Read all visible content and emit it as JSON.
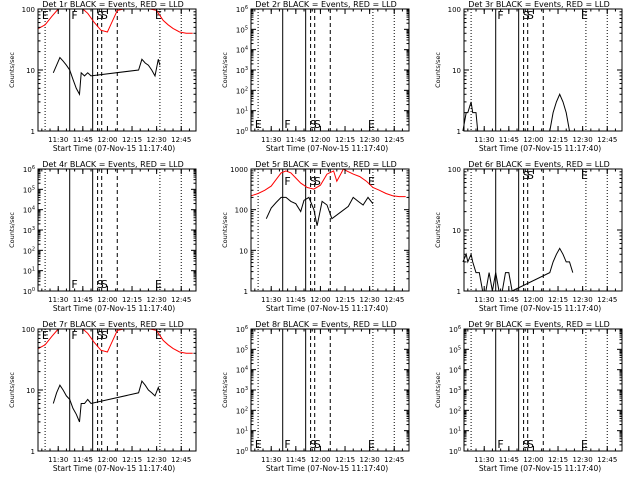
{
  "figure": {
    "xlabel": "Start Time (07-Nov-15 11:17:40)",
    "ylabel": "Counts/sec"
  },
  "colors": {
    "events": "#000000",
    "lld": "#ff0000",
    "background": "#ffffff"
  },
  "chart_data": [
    {
      "type": "line",
      "title": "Det 1r BLACK = Events, RED = LLD",
      "xlabel": "Start Time (07-Nov-15 11:17:40)",
      "ylabel": "Counts/sec",
      "yscale": "log",
      "ylim": [
        1,
        100
      ],
      "ytick_labels": [
        "1",
        "10",
        "100"
      ],
      "xtick_labels": [
        "11:30",
        "11:45",
        "12:00",
        "12:15",
        "12:30",
        "12:45"
      ],
      "vline_labels": [
        "E",
        "F",
        "S",
        "S",
        "E"
      ],
      "series": [
        {
          "color": "red",
          "x": [
            "11:18",
            "11:22",
            "11:26",
            "11:30",
            "11:35",
            "11:40",
            "11:43",
            "11:45",
            "11:48",
            "11:52",
            "11:56",
            "12:00",
            "12:02",
            "12:06",
            "12:10",
            "12:14",
            "12:18",
            "12:22",
            "12:26",
            "12:30",
            "12:34",
            "12:37",
            "12:40",
            "12:44",
            "12:48",
            "12:52"
          ],
          "y": [
            48,
            55,
            75,
            100,
            100,
            100,
            100,
            100,
            85,
            60,
            45,
            42,
            55,
            95,
            100,
            100,
            100,
            100,
            100,
            95,
            65,
            55,
            48,
            42,
            40,
            40
          ]
        },
        {
          "color": "black",
          "x": [
            "11:27",
            "11:29",
            "11:31",
            "11:33",
            "11:35",
            "11:37",
            "11:39",
            "11:41",
            "11:43",
            "11:44",
            "11:46",
            "11:48",
            "11:50",
            "12:19",
            "12:21",
            "12:23",
            "12:25",
            "12:27",
            "12:29",
            "12:31",
            "12:32"
          ],
          "y": [
            9,
            12,
            16,
            14,
            12,
            10,
            7,
            5,
            4,
            9,
            8,
            9,
            8,
            10,
            15,
            13,
            12,
            10,
            8,
            15,
            12
          ]
        }
      ]
    },
    {
      "type": "line",
      "title": "Det 2r BLACK = Events, RED = LLD",
      "xlabel": "Start Time (07-Nov-15 11:17:40)",
      "ylabel": "Counts/sec",
      "yscale": "log",
      "ylim": [
        1,
        1000000
      ],
      "ytick_labels": [
        "10^0",
        "10^1",
        "10^2",
        "10^3",
        "10^4",
        "10^5",
        "10^6"
      ],
      "xtick_labels": [
        "11:30",
        "11:45",
        "12:00",
        "12:15",
        "12:30",
        "12:45"
      ],
      "vline_labels": [
        "E",
        "F",
        "S",
        "S",
        "E"
      ],
      "series": []
    },
    {
      "type": "line",
      "title": "Det 3r BLACK = Events, RED = LLD",
      "xlabel": "Start Time (07-Nov-15 11:17:40)",
      "ylabel": "Counts/sec",
      "yscale": "log",
      "ylim": [
        1,
        100
      ],
      "ytick_labels": [
        "1",
        "10",
        "100"
      ],
      "xtick_labels": [
        "11:30",
        "11:45",
        "12:00",
        "12:15",
        "12:30",
        "12:45"
      ],
      "vline_labels": [
        "F",
        "S",
        "S",
        "E"
      ],
      "series": [
        {
          "color": "red",
          "x": [
            "12:38",
            "12:52"
          ],
          "y": [
            100,
            100
          ]
        },
        {
          "color": "black",
          "x": [
            "11:17",
            "11:19",
            "11:20",
            "11:22",
            "11:23",
            "11:25",
            "11:26",
            "12:10",
            "12:12",
            "12:14",
            "12:16",
            "12:18",
            "12:20",
            "12:22"
          ],
          "y": [
            1,
            2,
            2,
            3,
            2,
            2,
            1,
            1,
            2,
            3,
            4,
            3,
            2,
            1
          ]
        }
      ]
    },
    {
      "type": "line",
      "title": "Det 4r BLACK = Events, RED = LLD",
      "xlabel": "Start Time (07-Nov-15 11:17:40)",
      "ylabel": "Counts/sec",
      "yscale": "log",
      "ylim": [
        1,
        1000000
      ],
      "ytick_labels": [
        "10^0",
        "10^1",
        "10^2",
        "10^3",
        "10^4",
        "10^5",
        "10^6"
      ],
      "xtick_labels": [
        "11:30",
        "11:45",
        "12:00",
        "12:15",
        "12:30",
        "12:45"
      ],
      "vline_labels": [
        "F",
        "S",
        "S",
        "E"
      ],
      "series": []
    },
    {
      "type": "line",
      "title": "Det 5r BLACK = Events, RED = LLD",
      "xlabel": "Start Time (07-Nov-15 11:17:40)",
      "ylabel": "Counts/sec",
      "yscale": "log",
      "ylim": [
        1,
        1000
      ],
      "ytick_labels": [
        "1",
        "10",
        "100",
        "1000"
      ],
      "xtick_labels": [
        "11:30",
        "11:45",
        "12:00",
        "12:15",
        "12:30",
        "12:45"
      ],
      "vline_labels": [
        "F",
        "S",
        "S",
        "E"
      ],
      "series": [
        {
          "color": "red",
          "x": [
            "11:18",
            "11:22",
            "11:26",
            "11:30",
            "11:33",
            "11:36",
            "11:39",
            "11:42",
            "11:45",
            "11:48",
            "11:52",
            "11:56",
            "12:00",
            "12:04",
            "12:08",
            "12:10",
            "12:12",
            "12:14",
            "12:16",
            "12:20",
            "12:24",
            "12:28",
            "12:32",
            "12:36",
            "12:40",
            "12:44",
            "12:48",
            "12:52"
          ],
          "y": [
            220,
            250,
            300,
            380,
            550,
            800,
            900,
            800,
            600,
            450,
            350,
            320,
            400,
            750,
            900,
            500,
            700,
            1000,
            900,
            750,
            650,
            500,
            350,
            300,
            250,
            220,
            210,
            210
          ]
        },
        {
          "color": "black",
          "x": [
            "11:27",
            "11:30",
            "11:33",
            "11:36",
            "11:39",
            "11:42",
            "11:45",
            "11:48",
            "11:50",
            "11:53",
            "11:56",
            "11:58",
            "12:01",
            "12:04",
            "12:07",
            "12:17",
            "12:20",
            "12:23",
            "12:26",
            "12:29",
            "12:32"
          ],
          "y": [
            60,
            110,
            150,
            200,
            200,
            160,
            140,
            90,
            170,
            200,
            100,
            40,
            160,
            130,
            60,
            120,
            200,
            160,
            130,
            200,
            140
          ]
        }
      ]
    },
    {
      "type": "line",
      "title": "Det 6r BLACK = Events, RED = LLD",
      "xlabel": "Start Time (07-Nov-15 11:17:40)",
      "ylabel": "Counts/sec",
      "yscale": "log",
      "ylim": [
        1,
        100
      ],
      "ytick_labels": [
        "1",
        "10",
        "100"
      ],
      "xtick_labels": [
        "11:30",
        "11:45",
        "12:00",
        "12:15",
        "12:30",
        "12:45"
      ],
      "vline_labels": [
        "S",
        "S",
        "E"
      ],
      "series": [
        {
          "color": "red",
          "x": [
            "12:36",
            "12:52"
          ],
          "y": [
            100,
            100
          ]
        },
        {
          "color": "black",
          "x": [
            "11:17",
            "11:19",
            "11:20",
            "11:22",
            "11:23",
            "11:25",
            "11:27",
            "11:29",
            "11:31",
            "11:33",
            "11:35",
            "11:37",
            "11:39",
            "11:41",
            "11:43",
            "11:45",
            "11:47",
            "12:10",
            "12:12",
            "12:14",
            "12:16",
            "12:18",
            "12:20",
            "12:22",
            "12:24"
          ],
          "y": [
            3,
            4,
            3,
            4,
            3,
            2,
            2,
            1,
            1,
            2,
            1,
            2,
            1,
            1,
            2,
            2,
            1,
            2,
            3,
            4,
            5,
            4,
            3,
            3,
            2
          ]
        }
      ]
    },
    {
      "type": "line",
      "title": "Det 7r BLACK = Events, RED = LLD",
      "xlabel": "Start Time (07-Nov-15 11:17:40)",
      "ylabel": "Counts/sec",
      "yscale": "log",
      "ylim": [
        1,
        100
      ],
      "ytick_labels": [
        "1",
        "10",
        "100"
      ],
      "xtick_labels": [
        "11:30",
        "11:45",
        "12:00",
        "12:15",
        "12:30",
        "12:45"
      ],
      "vline_labels": [
        "E",
        "F",
        "S",
        "S",
        "E"
      ],
      "series": [
        {
          "color": "red",
          "x": [
            "11:18",
            "11:22",
            "11:26",
            "11:30",
            "11:35",
            "11:40",
            "11:43",
            "11:45",
            "11:48",
            "11:52",
            "11:56",
            "12:00",
            "12:02",
            "12:06",
            "12:10",
            "12:14",
            "12:18",
            "12:22",
            "12:26",
            "12:30",
            "12:34",
            "12:37",
            "12:40",
            "12:44",
            "12:48",
            "12:52"
          ],
          "y": [
            48,
            55,
            75,
            100,
            100,
            100,
            100,
            100,
            85,
            60,
            45,
            42,
            55,
            95,
            100,
            100,
            100,
            100,
            100,
            95,
            65,
            55,
            48,
            42,
            40,
            40
          ]
        },
        {
          "color": "black",
          "x": [
            "11:27",
            "11:29",
            "11:31",
            "11:33",
            "11:35",
            "11:37",
            "11:39",
            "11:41",
            "11:43",
            "11:44",
            "11:46",
            "11:48",
            "11:50",
            "12:19",
            "12:21",
            "12:23",
            "12:25",
            "12:27",
            "12:29",
            "12:31",
            "12:32"
          ],
          "y": [
            6,
            9,
            12,
            10,
            8,
            7,
            5,
            4,
            3,
            6,
            6,
            7,
            6,
            9,
            14,
            12,
            10,
            9,
            8,
            11,
            9
          ]
        }
      ]
    },
    {
      "type": "line",
      "title": "Det 8r BLACK = Events, RED = LLD",
      "xlabel": "Start Time (07-Nov-15 11:17:40)",
      "ylabel": "Counts/sec",
      "yscale": "log",
      "ylim": [
        1,
        1000000
      ],
      "ytick_labels": [
        "10^0",
        "10^1",
        "10^2",
        "10^3",
        "10^4",
        "10^5",
        "10^6"
      ],
      "xtick_labels": [
        "11:30",
        "11:45",
        "12:00",
        "12:15",
        "12:30",
        "12:45"
      ],
      "vline_labels": [
        "E",
        "F",
        "S",
        "S",
        "E"
      ],
      "series": []
    },
    {
      "type": "line",
      "title": "Det 9r BLACK = Events, RED = LLD",
      "xlabel": "Start Time (07-Nov-15 11:17:40)",
      "ylabel": "Counts/sec",
      "yscale": "log",
      "ylim": [
        1,
        1000000
      ],
      "ytick_labels": [
        "10^0",
        "10^1",
        "10^2",
        "10^3",
        "10^4",
        "10^5",
        "10^6"
      ],
      "xtick_labels": [
        "11:30",
        "11:45",
        "12:00",
        "12:15",
        "12:30",
        "12:45"
      ],
      "vline_labels": [
        "F",
        "S",
        "S",
        "E"
      ],
      "series": []
    }
  ]
}
